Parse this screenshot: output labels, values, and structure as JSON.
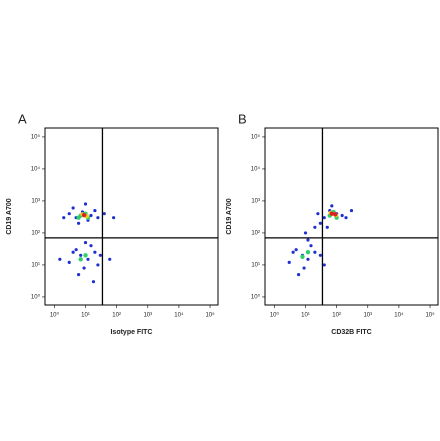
{
  "chart_data": [
    {
      "type": "scatter",
      "label": "A",
      "xlabel": "Isotype FITC",
      "ylabel": "CD19 A700",
      "log": true,
      "xlim": [
        0.5,
        180000
      ],
      "ylim": [
        0.56,
        190000
      ],
      "xticks": [
        {
          "value": 1,
          "label": "10⁰"
        },
        {
          "value": 10,
          "label": "10¹"
        },
        {
          "value": 100,
          "label": "10²"
        },
        {
          "value": 1000,
          "label": "10³"
        },
        {
          "value": 10000,
          "label": "10⁴"
        },
        {
          "value": 100000,
          "label": "10⁵"
        }
      ],
      "yticks": [
        {
          "value": 1,
          "label": "10⁰"
        },
        {
          "value": 10,
          "label": "10¹"
        },
        {
          "value": 100,
          "label": "10²"
        },
        {
          "value": 1000,
          "label": "10³"
        },
        {
          "value": 10000,
          "label": "10⁴"
        },
        {
          "value": 100000,
          "label": "10⁵"
        }
      ],
      "gate_x": 35,
      "gate_y": 70,
      "series": [
        {
          "color": "#1f2fd0",
          "x": [
            5,
            8,
            12,
            3,
            20,
            6,
            15,
            4,
            25,
            10,
            40,
            2,
            7,
            12,
            5,
            20,
            9,
            3,
            15,
            30,
            6,
            10,
            25,
            4,
            80,
            60,
            1.5,
            18
          ],
          "y": [
            300,
            450,
            250,
            400,
            500,
            200,
            350,
            600,
            300,
            800,
            400,
            300,
            20,
            15,
            30,
            25,
            8,
            12,
            40,
            20,
            5,
            50,
            10,
            25,
            300,
            15,
            15,
            3
          ]
        },
        {
          "color": "#2fd06a",
          "x": [
            7,
            10,
            12,
            6,
            10,
            7
          ],
          "y": [
            350,
            400,
            300,
            300,
            20,
            15
          ]
        },
        {
          "color": "#e8d020",
          "x": [
            8,
            11
          ],
          "y": [
            380,
            330
          ]
        },
        {
          "color": "#e02020",
          "x": [
            9
          ],
          "y": [
            360
          ]
        }
      ]
    },
    {
      "type": "scatter",
      "label": "B",
      "xlabel": "CD32B FITC",
      "ylabel": "CD19 A700",
      "log": true,
      "xlim": [
        0.5,
        180000
      ],
      "ylim": [
        0.56,
        190000
      ],
      "xticks": [
        {
          "value": 1,
          "label": "10⁰"
        },
        {
          "value": 10,
          "label": "10¹"
        },
        {
          "value": 100,
          "label": "10²"
        },
        {
          "value": 1000,
          "label": "10³"
        },
        {
          "value": 10000,
          "label": "10⁴"
        },
        {
          "value": 100000,
          "label": "10⁵"
        }
      ],
      "yticks": [
        {
          "value": 1,
          "label": "10⁰"
        },
        {
          "value": 10,
          "label": "10¹"
        },
        {
          "value": 100,
          "label": "10²"
        },
        {
          "value": 1000,
          "label": "10³"
        },
        {
          "value": 10000,
          "label": "10⁴"
        },
        {
          "value": 100000,
          "label": "10⁵"
        }
      ],
      "gate_x": 35,
      "gate_y": 70,
      "series": [
        {
          "color": "#1f2fd0",
          "x": [
            40,
            60,
            100,
            30,
            150,
            70,
            25,
            200,
            50,
            8,
            12,
            5,
            20,
            9,
            3,
            15,
            30,
            6,
            12,
            40,
            4,
            10,
            300,
            20
          ],
          "y": [
            300,
            500,
            400,
            200,
            350,
            700,
            400,
            300,
            150,
            20,
            15,
            30,
            25,
            8,
            12,
            40,
            20,
            5,
            60,
            10,
            25,
            100,
            500,
            150
          ]
        },
        {
          "color": "#2fd06a",
          "x": [
            60,
            80,
            100,
            8,
            12
          ],
          "y": [
            350,
            450,
            300,
            18,
            25
          ]
        },
        {
          "color": "#e8d020",
          "x": [
            65,
            95
          ],
          "y": [
            420,
            360
          ]
        },
        {
          "color": "#e02020",
          "x": [
            70,
            90
          ],
          "y": [
            400,
            380
          ]
        }
      ]
    }
  ]
}
